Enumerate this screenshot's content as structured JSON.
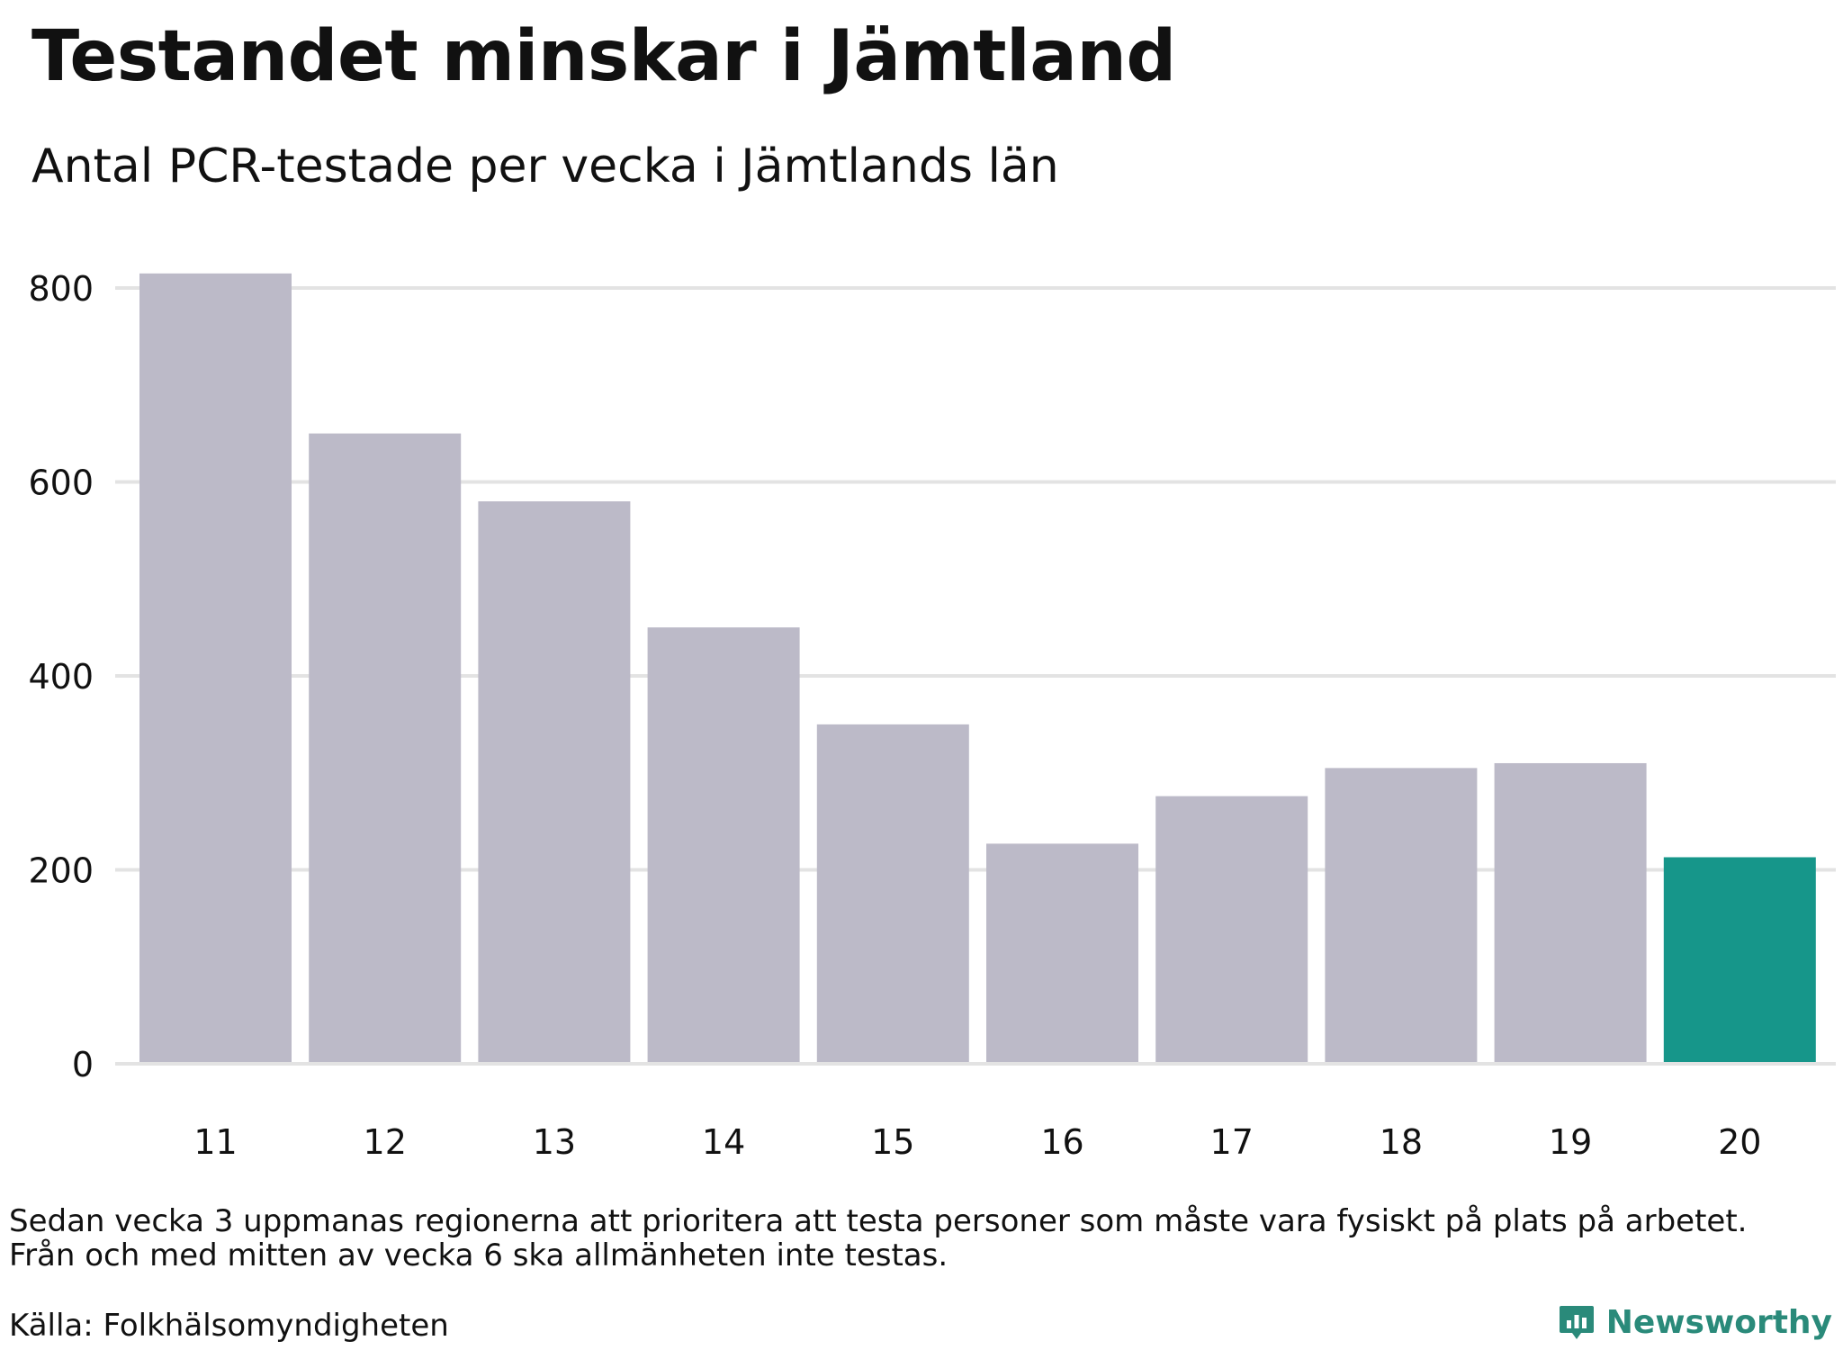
{
  "header": {
    "title": "Testandet minskar i Jämtland",
    "subtitle": "Antal PCR-testade per vecka i Jämtlands län"
  },
  "footer": {
    "note_line1": "Sedan vecka 3 uppmanas regionerna att prioritera att testa personer som måste vara fysiskt på plats på arbetet.",
    "note_line2": "Från och med mitten av vecka 6 ska allmänheten inte testas.",
    "source": "Källa: Folkhälsomyndigheten",
    "brand": "Newsworthy",
    "brand_icon": "bar-chart-speech-icon"
  },
  "colors": {
    "bar_default": "#bcbac8",
    "bar_highlight": "#16968a",
    "grid": "#e3e3e3",
    "brand": "#2a8a7a"
  },
  "chart_data": {
    "type": "bar",
    "title": "Testandet minskar i Jämtland",
    "subtitle": "Antal PCR-testade per vecka i Jämtlands län",
    "xlabel": "",
    "ylabel": "",
    "categories": [
      "11",
      "12",
      "13",
      "14",
      "15",
      "16",
      "17",
      "18",
      "19",
      "20"
    ],
    "values": [
      815,
      650,
      580,
      450,
      350,
      227,
      276,
      305,
      310,
      213
    ],
    "highlight_index": 9,
    "ylim": [
      0,
      800
    ],
    "yticks": [
      0,
      200,
      400,
      600,
      800
    ],
    "grid": true,
    "legend": "none"
  }
}
